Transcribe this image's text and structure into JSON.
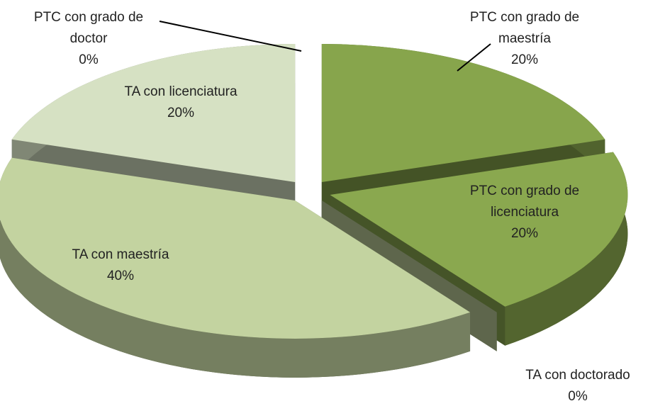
{
  "chart_data": {
    "type": "pie3d",
    "categories": [
      "PTC con grado de doctor",
      "PTC con grado de maestría",
      "PTC con grado de licenciatura",
      "TA con doctorado",
      "TA con maestría",
      "TA con licenciatura"
    ],
    "values": [
      0,
      20,
      20,
      0,
      40,
      20
    ],
    "value_labels": [
      "0%",
      "20%",
      "20%",
      "0%",
      "40%",
      "20%"
    ],
    "colors": [
      "#7e9a46",
      "#87a54c",
      "#8aa84f",
      "#bccb98",
      "#c3d3a0",
      "#d6e1c3"
    ]
  }
}
